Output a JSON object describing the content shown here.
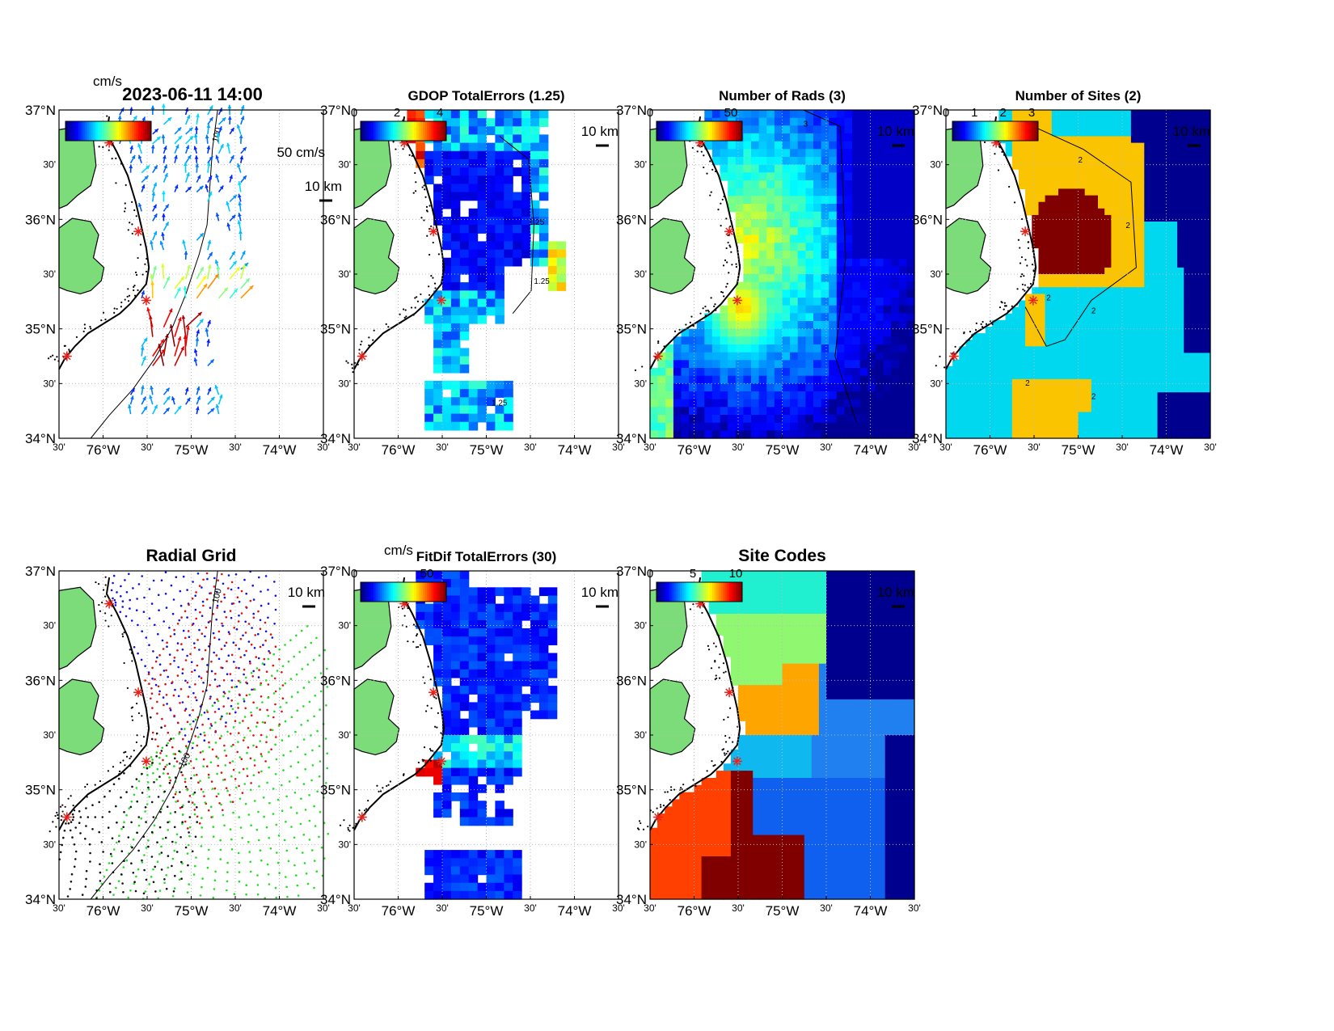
{
  "figure_timestamp": "2023-06-11 14:00",
  "unit_label_top": "cm/s",
  "axes": {
    "lat_ticks": [
      "37°N",
      "30'",
      "36°N",
      "30'",
      "35°N",
      "30'",
      "34°N"
    ],
    "lon_ticks": [
      "30'",
      "76°W",
      "30'",
      "75°W",
      "30'",
      "74°W",
      "30'"
    ]
  },
  "scale_bar": "10 km",
  "vector_scale": "50 cm/s",
  "isobath_label": "100",
  "panels": [
    {
      "id": "currents",
      "title": "2023-06-11 14:00",
      "colorbar_ticks": []
    },
    {
      "id": "gdop",
      "title": "GDOP TotalErrors (1.25)",
      "colorbar_ticks": [
        "0",
        "2",
        "4"
      ],
      "contour_label": "1.25"
    },
    {
      "id": "nrads",
      "title": "Number of Rads (3)",
      "colorbar_ticks": [
        "0",
        "50"
      ],
      "contour_label": "3"
    },
    {
      "id": "nsites",
      "title": "Number of Sites (2)",
      "colorbar_ticks": [
        "0",
        "1",
        "2",
        "3"
      ],
      "contour_label": "2"
    },
    {
      "id": "radial",
      "title": "Radial Grid",
      "colorbar_ticks": []
    },
    {
      "id": "fitdif",
      "title": "FitDif TotalErrors (30)",
      "unit": "cm/s",
      "colorbar_ticks": [
        "0",
        "50"
      ]
    },
    {
      "id": "sitecodes",
      "title": "Site Codes",
      "colorbar_ticks": [
        "0",
        "5",
        "10"
      ]
    }
  ],
  "colors": {
    "land": "#7ddc7a",
    "coast": "#000000",
    "station": "#e8201a",
    "grid": "#bbbbbb",
    "site_blue": "#1010e0",
    "site_red": "#e01010",
    "site_green": "#22dd22",
    "site_black": "#111111"
  }
}
